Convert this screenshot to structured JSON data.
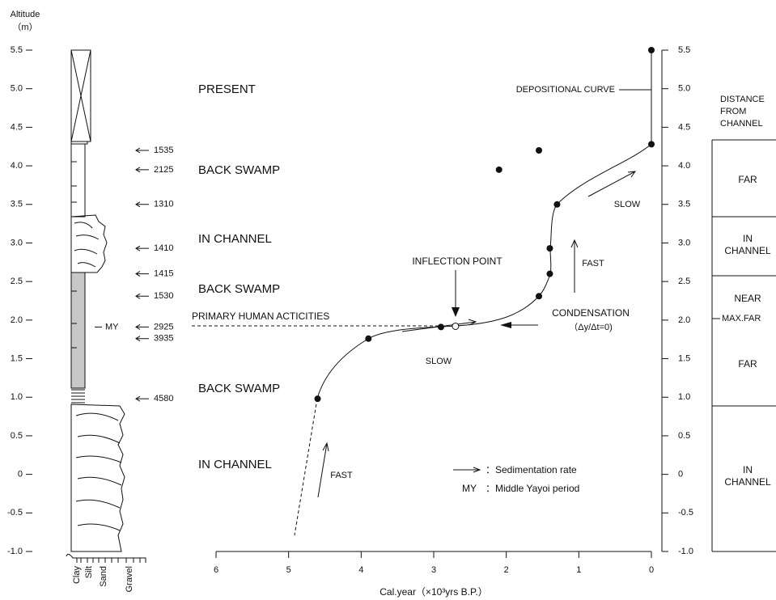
{
  "chart_data": {
    "type": "scatter",
    "y_label": "Altitude",
    "y_unit": "（m）",
    "x_label": "Cal.year（×10³yrs B.P.）",
    "xlim": [
      6,
      0
    ],
    "xticks": [
      6,
      5,
      4,
      3,
      2,
      1,
      0
    ],
    "ylim": [
      -1.0,
      5.5
    ],
    "yticks": [
      {
        "value": 5.5,
        "label": "5.5"
      },
      {
        "value": 5.0,
        "label": "5.0"
      },
      {
        "value": 4.5,
        "label": "4.5"
      },
      {
        "value": 4.0,
        "label": "4.0"
      },
      {
        "value": 3.5,
        "label": "3.5"
      },
      {
        "value": 3.0,
        "label": "3.0"
      },
      {
        "value": 2.5,
        "label": "2.5"
      },
      {
        "value": 2.0,
        "label": "2.0"
      },
      {
        "value": 1.5,
        "label": "1.5"
      },
      {
        "value": 1.0,
        "label": "1.0"
      },
      {
        "value": 0.5,
        "label": "0.5"
      },
      0,
      {
        "value": -0.5,
        "label": "-0.5"
      },
      {
        "value": -1.0,
        "label": "-1.0"
      }
    ],
    "x": [
      0,
      0,
      1.55,
      2.1,
      1.3,
      1.4,
      1.4,
      1.55,
      2.9,
      3.9,
      4.6
    ],
    "values": [
      5.5,
      4.28,
      4.2,
      3.95,
      3.5,
      2.93,
      2.6,
      2.31,
      1.91,
      1.76,
      0.98
    ],
    "inflection_point": {
      "x": 2.7,
      "y": 1.92
    },
    "dates": [
      {
        "label": "1535",
        "altitude": 4.2
      },
      {
        "label": "2125",
        "altitude": 3.95
      },
      {
        "label": "1310",
        "altitude": 3.5
      },
      {
        "label": "1410",
        "altitude": 2.93
      },
      {
        "label": "1415",
        "altitude": 2.6
      },
      {
        "label": "1530",
        "altitude": 2.31
      },
      {
        "label": "2925",
        "altitude": 1.91
      },
      {
        "label": "3935",
        "altitude": 1.76
      },
      {
        "label": "4580",
        "altitude": 0.98
      }
    ],
    "my_label": "MY",
    "grain_sizes": [
      "Clay",
      "Silt",
      "Sand",
      "Gravel"
    ],
    "facies": [
      "PRESENT",
      "BACK SWAMP",
      "IN CHANNEL",
      "BACK SWAMP",
      "BACK SWAMP",
      "IN CHANNEL"
    ],
    "annotations": {
      "depositional_curve": "DEPOSITIONAL CURVE",
      "inflection": "INFLECTION POINT",
      "human": "PRIMARY HUMAN ACTICITIES",
      "condensation": "CONDENSATION",
      "condensation_eq": "（Δy/Δt=0)",
      "slow_upper": "SLOW",
      "fast_upper": "FAST",
      "slow_lower": "SLOW",
      "fast_lower": "FAST"
    },
    "legend": {
      "rate": "：Sedimentation rate",
      "my": "MY",
      "my_text": "：Middle Yayoi period"
    },
    "distance": {
      "header": [
        "DISTANCE",
        "FROM",
        "CHANNEL"
      ],
      "zones": [
        "FAR",
        "IN",
        "CHANNEL",
        "NEAR",
        "MAX.FAR",
        "FAR",
        "IN",
        "CHANNEL"
      ]
    }
  }
}
